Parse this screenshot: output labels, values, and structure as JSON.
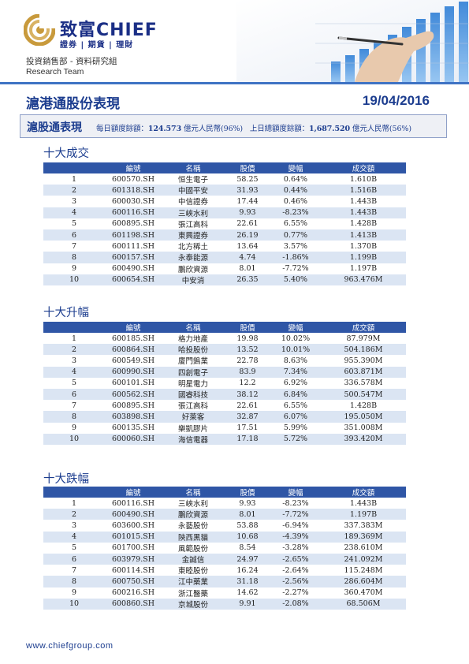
{
  "header": {
    "logo_text": "致富CHIEF",
    "logo_tagline": "證券 | 期貨 | 理財",
    "department": "投資銷售部 - 資料研究組",
    "team": "Research Team"
  },
  "report": {
    "title": "滬港通股份表現",
    "date": "19/04/2016"
  },
  "summary": {
    "label": "滬股通表現",
    "daily_quota_label": "每日額度餘額：",
    "daily_quota_value": "124.573",
    "daily_quota_unit": " 億元人民幣(96%)",
    "prev_total_label": "上日總額度餘額：",
    "prev_total_value": "1,687.520",
    "prev_total_unit": " 億元人民幣(56%)"
  },
  "columns": {
    "code": "編號",
    "name": "名稱",
    "price": "股價",
    "change": "變幅",
    "turnover": "成交額"
  },
  "colors": {
    "brand_blue": "#1c3d8f",
    "header_bg": "#2f56a6",
    "alt_row": "#dbe5f3",
    "positive": "#2fa84f",
    "negative": "#e01f2c"
  },
  "sections": [
    {
      "title": "十大成交",
      "rows": [
        {
          "rank": "1",
          "code": "600570.SH",
          "name": "恒生電子",
          "price": "58.25",
          "change": "0.64%",
          "dir": "pos",
          "turnover": "1.610B"
        },
        {
          "rank": "2",
          "code": "601318.SH",
          "name": "中國平安",
          "price": "31.93",
          "change": "0.44%",
          "dir": "pos",
          "turnover": "1.516B"
        },
        {
          "rank": "3",
          "code": "600030.SH",
          "name": "中信證券",
          "price": "17.44",
          "change": "0.46%",
          "dir": "pos",
          "turnover": "1.443B"
        },
        {
          "rank": "4",
          "code": "600116.SH",
          "name": "三峽水利",
          "price": "9.93",
          "change": "-8.23%",
          "dir": "neg",
          "turnover": "1.443B"
        },
        {
          "rank": "5",
          "code": "600895.SH",
          "name": "張江高科",
          "price": "22.61",
          "change": "6.55%",
          "dir": "pos",
          "turnover": "1.428B"
        },
        {
          "rank": "6",
          "code": "601198.SH",
          "name": "東興證券",
          "price": "26.19",
          "change": "0.77%",
          "dir": "pos",
          "turnover": "1.413B"
        },
        {
          "rank": "7",
          "code": "600111.SH",
          "name": "北方稀土",
          "price": "13.64",
          "change": "3.57%",
          "dir": "pos",
          "turnover": "1.370B"
        },
        {
          "rank": "8",
          "code": "600157.SH",
          "name": "永泰能源",
          "price": "4.74",
          "change": "-1.86%",
          "dir": "neg",
          "turnover": "1.199B"
        },
        {
          "rank": "9",
          "code": "600490.SH",
          "name": "鵬欣資源",
          "price": "8.01",
          "change": "-7.72%",
          "dir": "neg",
          "turnover": "1.197B"
        },
        {
          "rank": "10",
          "code": "600654.SH",
          "name": "中安消",
          "price": "26.35",
          "change": "5.40%",
          "dir": "pos",
          "turnover": "963.476M"
        }
      ]
    },
    {
      "title": "十大升幅",
      "rows": [
        {
          "rank": "1",
          "code": "600185.SH",
          "name": "格力地產",
          "price": "19.98",
          "change": "10.02%",
          "dir": "pos",
          "turnover": "87.979M"
        },
        {
          "rank": "2",
          "code": "600864.SH",
          "name": "哈投股份",
          "price": "13.52",
          "change": "10.01%",
          "dir": "pos",
          "turnover": "504.186M"
        },
        {
          "rank": "3",
          "code": "600549.SH",
          "name": "廈門鎢業",
          "price": "22.78",
          "change": "8.63%",
          "dir": "pos",
          "turnover": "955.390M"
        },
        {
          "rank": "4",
          "code": "600990.SH",
          "name": "四創電子",
          "price": "83.9",
          "change": "7.34%",
          "dir": "pos",
          "turnover": "603.871M"
        },
        {
          "rank": "5",
          "code": "600101.SH",
          "name": "明星電力",
          "price": "12.2",
          "change": "6.92%",
          "dir": "pos",
          "turnover": "336.578M"
        },
        {
          "rank": "6",
          "code": "600562.SH",
          "name": "國睿科技",
          "price": "38.12",
          "change": "6.84%",
          "dir": "pos",
          "turnover": "500.547M"
        },
        {
          "rank": "7",
          "code": "600895.SH",
          "name": "張江高科",
          "price": "22.61",
          "change": "6.55%",
          "dir": "pos",
          "turnover": "1.428B"
        },
        {
          "rank": "8",
          "code": "603898.SH",
          "name": "好萊客",
          "price": "32.87",
          "change": "6.07%",
          "dir": "pos",
          "turnover": "195.050M"
        },
        {
          "rank": "9",
          "code": "600135.SH",
          "name": "樂凱膠片",
          "price": "17.51",
          "change": "5.99%",
          "dir": "pos",
          "turnover": "351.008M"
        },
        {
          "rank": "10",
          "code": "600060.SH",
          "name": "海信電器",
          "price": "17.18",
          "change": "5.72%",
          "dir": "pos",
          "turnover": "393.420M"
        }
      ]
    },
    {
      "title": "十大跌幅",
      "rows": [
        {
          "rank": "1",
          "code": "600116.SH",
          "name": "三峽水利",
          "price": "9.93",
          "change": "-8.23%",
          "dir": "neg",
          "turnover": "1.443B"
        },
        {
          "rank": "2",
          "code": "600490.SH",
          "name": "鵬欣資源",
          "price": "8.01",
          "change": "-7.72%",
          "dir": "neg",
          "turnover": "1.197B"
        },
        {
          "rank": "3",
          "code": "603600.SH",
          "name": "永藝股份",
          "price": "53.88",
          "change": "-6.94%",
          "dir": "neg",
          "turnover": "337.383M"
        },
        {
          "rank": "4",
          "code": "601015.SH",
          "name": "陝西黑貓",
          "price": "10.68",
          "change": "-4.39%",
          "dir": "neg",
          "turnover": "189.369M"
        },
        {
          "rank": "5",
          "code": "601700.SH",
          "name": "風範股份",
          "price": "8.54",
          "change": "-3.28%",
          "dir": "neg",
          "turnover": "238.610M"
        },
        {
          "rank": "6",
          "code": "603979.SH",
          "name": "金誠信",
          "price": "24.97",
          "change": "-2.65%",
          "dir": "neg",
          "turnover": "241.092M"
        },
        {
          "rank": "7",
          "code": "600114.SH",
          "name": "東睦股份",
          "price": "16.24",
          "change": "-2.64%",
          "dir": "neg",
          "turnover": "115.248M"
        },
        {
          "rank": "8",
          "code": "600750.SH",
          "name": "江中藥業",
          "price": "31.18",
          "change": "-2.56%",
          "dir": "neg",
          "turnover": "286.604M"
        },
        {
          "rank": "9",
          "code": "600216.SH",
          "name": "浙江醫藥",
          "price": "14.62",
          "change": "-2.27%",
          "dir": "neg",
          "turnover": "360.470M"
        },
        {
          "rank": "10",
          "code": "600860.SH",
          "name": "京城股份",
          "price": "9.91",
          "change": "-2.08%",
          "dir": "neg",
          "turnover": "68.506M"
        }
      ]
    }
  ],
  "footer": {
    "website": "www.chiefgroup.com"
  }
}
